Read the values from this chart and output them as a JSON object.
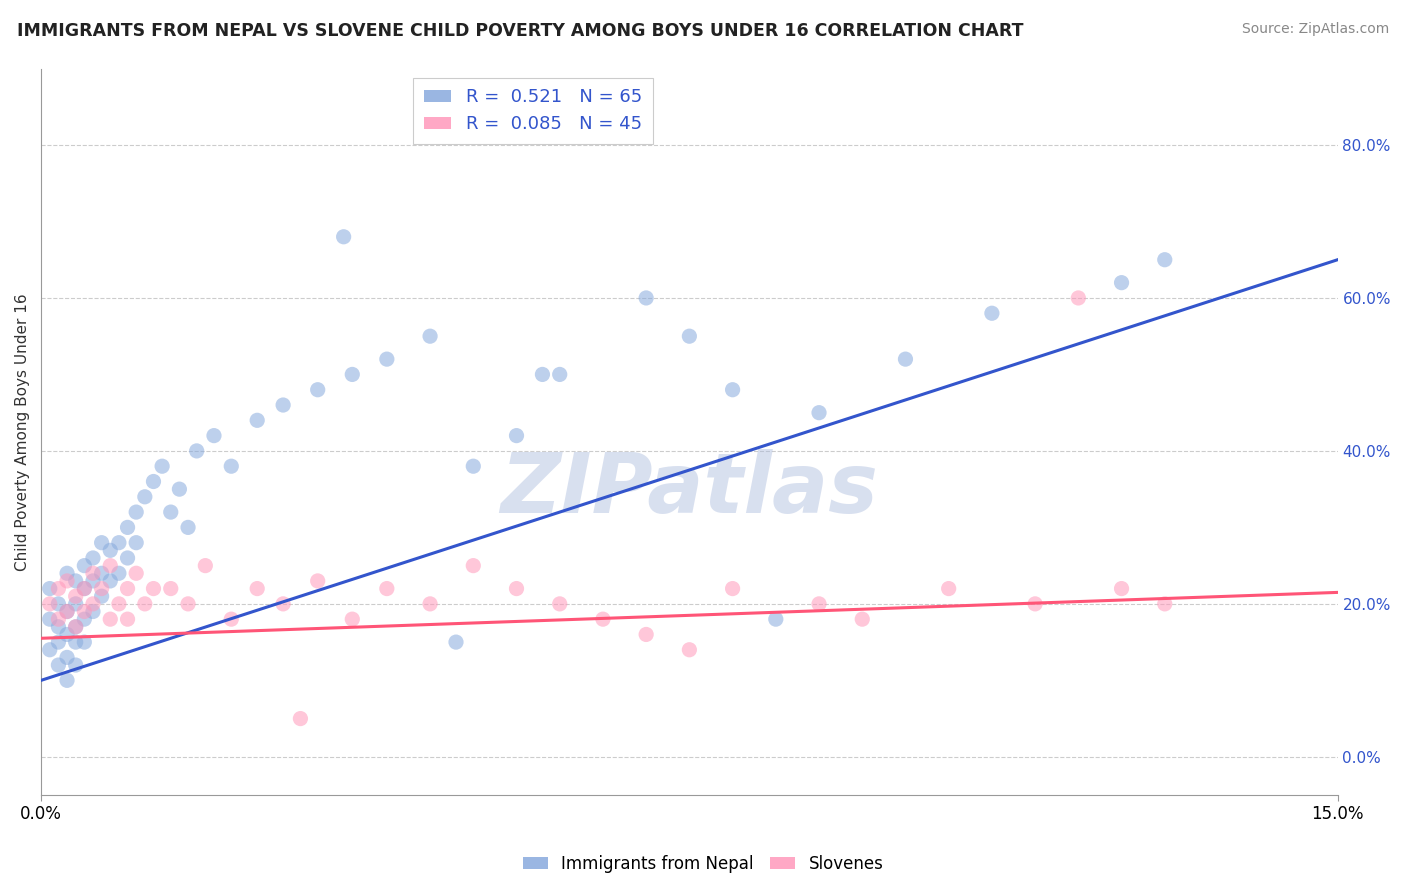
{
  "title": "IMMIGRANTS FROM NEPAL VS SLOVENE CHILD POVERTY AMONG BOYS UNDER 16 CORRELATION CHART",
  "source_text": "Source: ZipAtlas.com",
  "ylabel": "Child Poverty Among Boys Under 16",
  "legend_label1": "Immigrants from Nepal",
  "legend_label2": "Slovenes",
  "R1": 0.521,
  "N1": 65,
  "R2": 0.085,
  "N2": 45,
  "x_min": 0.0,
  "x_max": 0.15,
  "y_min": -0.05,
  "y_max": 0.9,
  "right_yticks": [
    0.0,
    0.2,
    0.4,
    0.6,
    0.8
  ],
  "right_ytick_labels": [
    "0.0%",
    "20.0%",
    "40.0%",
    "60.0%",
    "80.0%"
  ],
  "color_blue": "#88AADD",
  "color_pink": "#FF99BB",
  "color_blue_line": "#3355CC",
  "color_pink_line": "#FF5577",
  "watermark": "ZIPatlas",
  "watermark_color": "#AABBDD",
  "scatter_alpha": 0.55,
  "scatter_size": 120,
  "nepal_x": [
    0.001,
    0.001,
    0.001,
    0.002,
    0.002,
    0.002,
    0.002,
    0.003,
    0.003,
    0.003,
    0.003,
    0.003,
    0.004,
    0.004,
    0.004,
    0.004,
    0.004,
    0.005,
    0.005,
    0.005,
    0.005,
    0.006,
    0.006,
    0.006,
    0.007,
    0.007,
    0.007,
    0.008,
    0.008,
    0.009,
    0.009,
    0.01,
    0.01,
    0.011,
    0.011,
    0.012,
    0.013,
    0.014,
    0.015,
    0.016,
    0.017,
    0.018,
    0.02,
    0.022,
    0.025,
    0.028,
    0.032,
    0.036,
    0.04,
    0.045,
    0.05,
    0.055,
    0.06,
    0.07,
    0.075,
    0.08,
    0.09,
    0.1,
    0.11,
    0.125,
    0.13,
    0.035,
    0.048,
    0.058,
    0.085
  ],
  "nepal_y": [
    0.22,
    0.18,
    0.14,
    0.2,
    0.17,
    0.15,
    0.12,
    0.24,
    0.19,
    0.16,
    0.13,
    0.1,
    0.23,
    0.2,
    0.17,
    0.15,
    0.12,
    0.25,
    0.22,
    0.18,
    0.15,
    0.26,
    0.23,
    0.19,
    0.28,
    0.24,
    0.21,
    0.27,
    0.23,
    0.28,
    0.24,
    0.3,
    0.26,
    0.32,
    0.28,
    0.34,
    0.36,
    0.38,
    0.32,
    0.35,
    0.3,
    0.4,
    0.42,
    0.38,
    0.44,
    0.46,
    0.48,
    0.5,
    0.52,
    0.55,
    0.38,
    0.42,
    0.5,
    0.6,
    0.55,
    0.48,
    0.45,
    0.52,
    0.58,
    0.62,
    0.65,
    0.68,
    0.15,
    0.5,
    0.18
  ],
  "slovene_x": [
    0.001,
    0.002,
    0.002,
    0.003,
    0.003,
    0.004,
    0.004,
    0.005,
    0.005,
    0.006,
    0.006,
    0.007,
    0.008,
    0.008,
    0.009,
    0.01,
    0.01,
    0.011,
    0.012,
    0.013,
    0.015,
    0.017,
    0.019,
    0.022,
    0.025,
    0.028,
    0.032,
    0.036,
    0.04,
    0.045,
    0.05,
    0.055,
    0.06,
    0.065,
    0.07,
    0.08,
    0.09,
    0.095,
    0.105,
    0.115,
    0.12,
    0.125,
    0.13,
    0.03,
    0.075
  ],
  "slovene_y": [
    0.2,
    0.22,
    0.18,
    0.23,
    0.19,
    0.21,
    0.17,
    0.22,
    0.19,
    0.24,
    0.2,
    0.22,
    0.25,
    0.18,
    0.2,
    0.22,
    0.18,
    0.24,
    0.2,
    0.22,
    0.22,
    0.2,
    0.25,
    0.18,
    0.22,
    0.2,
    0.23,
    0.18,
    0.22,
    0.2,
    0.25,
    0.22,
    0.2,
    0.18,
    0.16,
    0.22,
    0.2,
    0.18,
    0.22,
    0.2,
    0.6,
    0.22,
    0.2,
    0.05,
    0.14
  ],
  "blue_line_x0": 0.0,
  "blue_line_y0": 0.1,
  "blue_line_x1": 0.15,
  "blue_line_y1": 0.65,
  "pink_line_x0": 0.0,
  "pink_line_y0": 0.155,
  "pink_line_x1": 0.15,
  "pink_line_y1": 0.215
}
